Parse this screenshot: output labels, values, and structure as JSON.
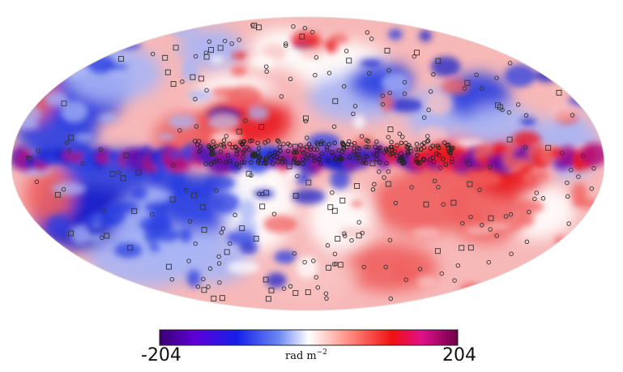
{
  "colorbar": {
    "min_label": "-204",
    "max_label": "204",
    "unit_base": "rad m",
    "unit_exponent": "−2",
    "range": [
      -204,
      204
    ],
    "colors": [
      "#3a0070",
      "#5d00d8",
      "#1420e8",
      "#4a6cf0",
      "#ffffff",
      "#ff8a80",
      "#f01010",
      "#e0108a",
      "#7a0050"
    ]
  },
  "map": {
    "projection": "mollweide",
    "background": "#f7b8b8",
    "palette": {
      "deep_red": "#e8141c",
      "red": "#f06060",
      "pink": "#f9c2c2",
      "white": "#ffffff",
      "light_blue": "#a9b5f5",
      "blue": "#2a3fe0",
      "deep_blue": "#1c20c8",
      "purple": "#6a10a8",
      "magenta": "#b0107a"
    },
    "markers": {
      "circle_icon": "open-circle-source",
      "square_icon": "open-square-source"
    }
  }
}
